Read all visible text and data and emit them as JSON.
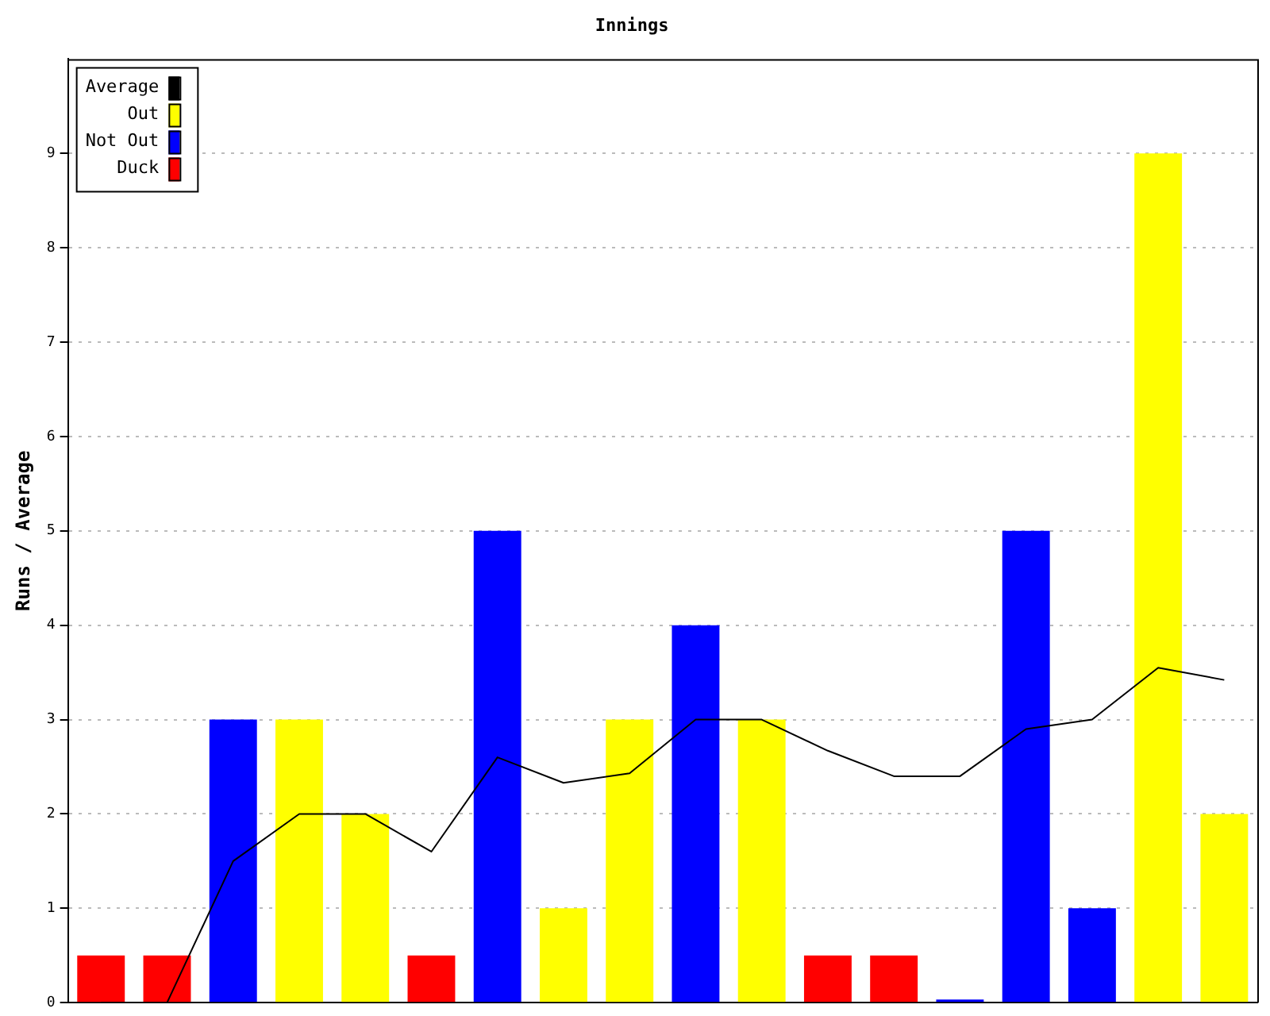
{
  "chart_data": {
    "type": "bar",
    "title": "Innings",
    "ylabel": "Runs / Average",
    "categories": [
      null,
      null,
      null,
      null,
      null,
      null,
      null,
      null,
      null,
      null,
      null,
      null,
      null,
      null,
      null,
      null,
      null,
      null
    ],
    "stacked": true,
    "series": [
      {
        "name": "Average",
        "type": "line",
        "color": "#000000",
        "values": [
          0,
          0,
          1.5,
          2,
          2,
          1.6,
          2.6,
          2.33,
          2.43,
          3,
          3,
          2.67,
          2.4,
          2.4,
          2.9,
          3,
          3.55,
          3.42
        ]
      },
      {
        "name": "Out",
        "color": "#ffff00",
        "values": [
          null,
          null,
          null,
          3,
          2,
          null,
          null,
          1,
          3,
          null,
          3,
          null,
          null,
          null,
          null,
          null,
          9,
          2
        ]
      },
      {
        "name": "Not Out",
        "color": "#0000ff",
        "values": [
          null,
          null,
          3,
          null,
          null,
          null,
          5,
          null,
          null,
          4,
          null,
          null,
          null,
          0,
          5,
          1,
          null,
          null
        ]
      },
      {
        "name": "Duck",
        "color": "#ff0000",
        "values": [
          0.5,
          0.5,
          null,
          null,
          null,
          0.5,
          null,
          null,
          null,
          null,
          null,
          0.5,
          0.5,
          null,
          null,
          null,
          null,
          null
        ]
      }
    ],
    "ylim": [
      0,
      10
    ],
    "yticks": [
      0,
      1,
      2,
      3,
      4,
      5,
      6,
      7,
      8,
      9
    ],
    "grid": "y",
    "legend": "top left",
    "marker": "none",
    "tick_labels": "y"
  }
}
